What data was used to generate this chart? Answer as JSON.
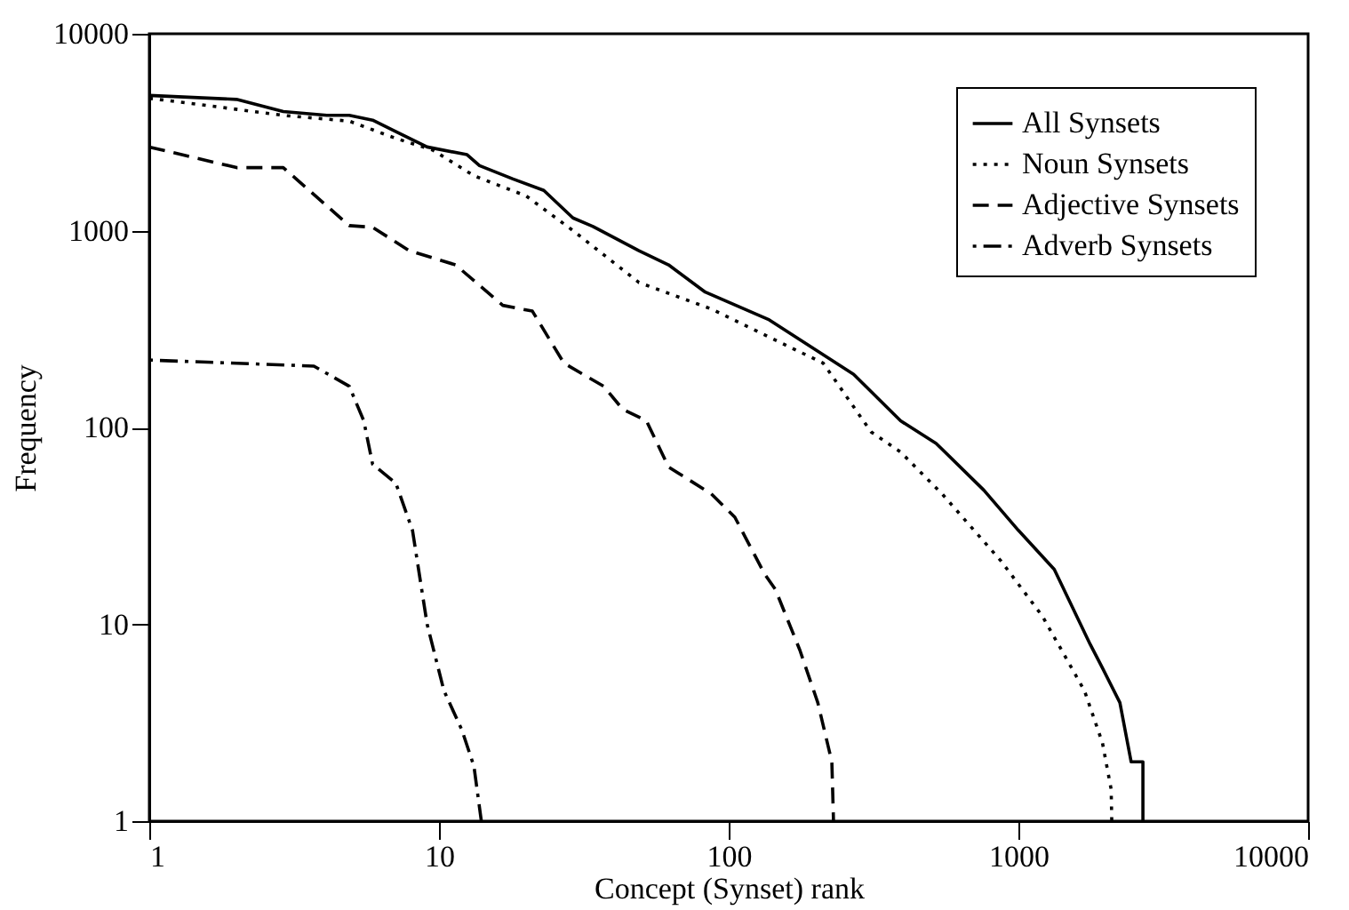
{
  "chart_data": {
    "type": "line",
    "xlabel": "Concept (Synset) rank",
    "ylabel": "Frequency",
    "log": "xy",
    "xlim": [
      1,
      10000
    ],
    "ylim": [
      1,
      10000
    ],
    "xticks": [
      1,
      10,
      100,
      1000,
      10000
    ],
    "yticks": [
      1,
      10,
      100,
      1000,
      10000
    ],
    "grid": false,
    "legend": "top right",
    "marker": "none",
    "series": [
      {
        "name": "All Synsets",
        "color": "#000000",
        "line_style": "solid",
        "x": [
          1,
          2,
          2.9,
          4.1,
          4.9,
          5.9,
          7.1,
          9.1,
          12.5,
          13.8,
          18,
          23,
          29,
          34,
          49,
          62,
          83,
          138,
          270,
          392,
          520,
          760,
          1000,
          1330,
          1770,
          1950,
          2240,
          2450,
          2690,
          2690
        ],
        "values": [
          4860,
          4640,
          4030,
          3850,
          3850,
          3640,
          3180,
          2660,
          2430,
          2140,
          1830,
          1600,
          1160,
          1050,
          790,
          670,
          487,
          352,
          186,
          108,
          83,
          48,
          30,
          19,
          7.9,
          6,
          4,
          2,
          2,
          1
        ]
      },
      {
        "name": "Noun Synsets",
        "color": "#000000",
        "line_style": "dotted",
        "x": [
          1,
          1.44,
          2.9,
          4.9,
          7.1,
          9.5,
          13.2,
          20,
          29,
          49,
          87,
          212,
          310,
          392,
          545,
          870,
          1210,
          1690,
          1950,
          2090,
          2100
        ],
        "values": [
          4700,
          4400,
          3850,
          3600,
          2940,
          2570,
          1900,
          1500,
          1000,
          545,
          400,
          212,
          95,
          75,
          46,
          21,
          11,
          4.6,
          2.5,
          1.45,
          1
        ]
      },
      {
        "name": "Adjective Synsets",
        "color": "#000000",
        "line_style": "dashed",
        "x": [
          1,
          2,
          2.9,
          4.9,
          5.9,
          7.9,
          11.4,
          16.6,
          21,
          27,
          37,
          43,
          52,
          62,
          87,
          105,
          133,
          145,
          176,
          203,
          227,
          230
        ],
        "values": [
          2660,
          2090,
          2090,
          1060,
          1040,
          790,
          670,
          417,
          390,
          212,
          162,
          124,
          108,
          63,
          46,
          35,
          18,
          15,
          7.4,
          4,
          2,
          1
        ]
      },
      {
        "name": "Adverb Synsets",
        "color": "#000000",
        "line_style": "dashdot",
        "x": [
          1,
          3.7,
          4.9,
          5.5,
          5.9,
          7.1,
          8.1,
          9.1,
          10.4,
          12,
          13.2,
          14
        ],
        "values": [
          220,
          205,
          162,
          108,
          65,
          52,
          30,
          10,
          4.6,
          2.9,
          1.9,
          1
        ]
      }
    ]
  }
}
